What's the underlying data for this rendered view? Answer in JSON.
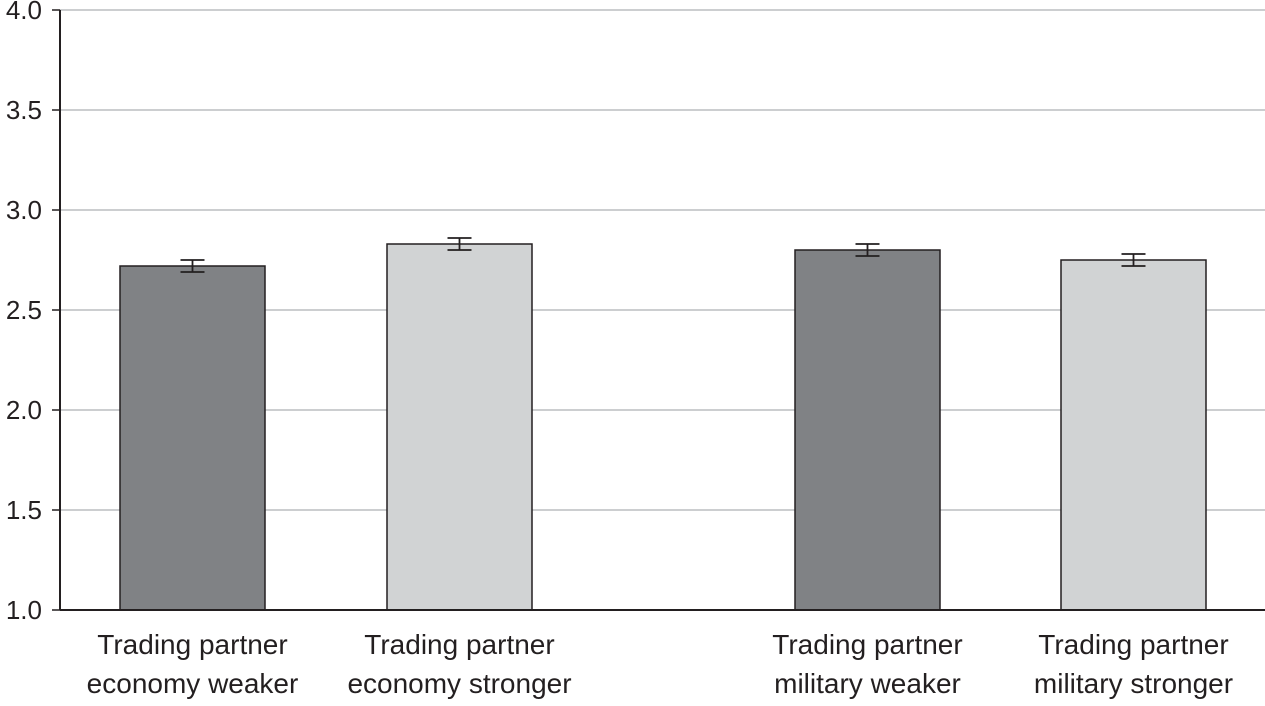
{
  "chart_data": {
    "type": "bar",
    "title": "",
    "xlabel": "",
    "ylabel": "",
    "ylim": [
      1.0,
      4.0
    ],
    "y_ticks": [
      "1.0",
      "1.5",
      "2.0",
      "2.5",
      "3.0",
      "3.5",
      "4.0"
    ],
    "grid": "horizontal",
    "categories": [
      {
        "line1": "Trading partner",
        "line2": "economy weaker"
      },
      {
        "line1": "Trading partner",
        "line2": "economy stronger"
      },
      {
        "line1": "Trading partner",
        "line2": "military weaker"
      },
      {
        "line1": "Trading partner",
        "line2": "military stronger"
      }
    ],
    "values": [
      2.72,
      2.83,
      2.8,
      2.75
    ],
    "error_low": [
      2.69,
      2.8,
      2.77,
      2.72
    ],
    "error_high": [
      2.75,
      2.86,
      2.83,
      2.78
    ],
    "bar_colors": [
      "#808285",
      "#d1d3d4",
      "#808285",
      "#d1d3d4"
    ],
    "axis_color": "#231f20",
    "grid_color": "#bcbec0"
  }
}
